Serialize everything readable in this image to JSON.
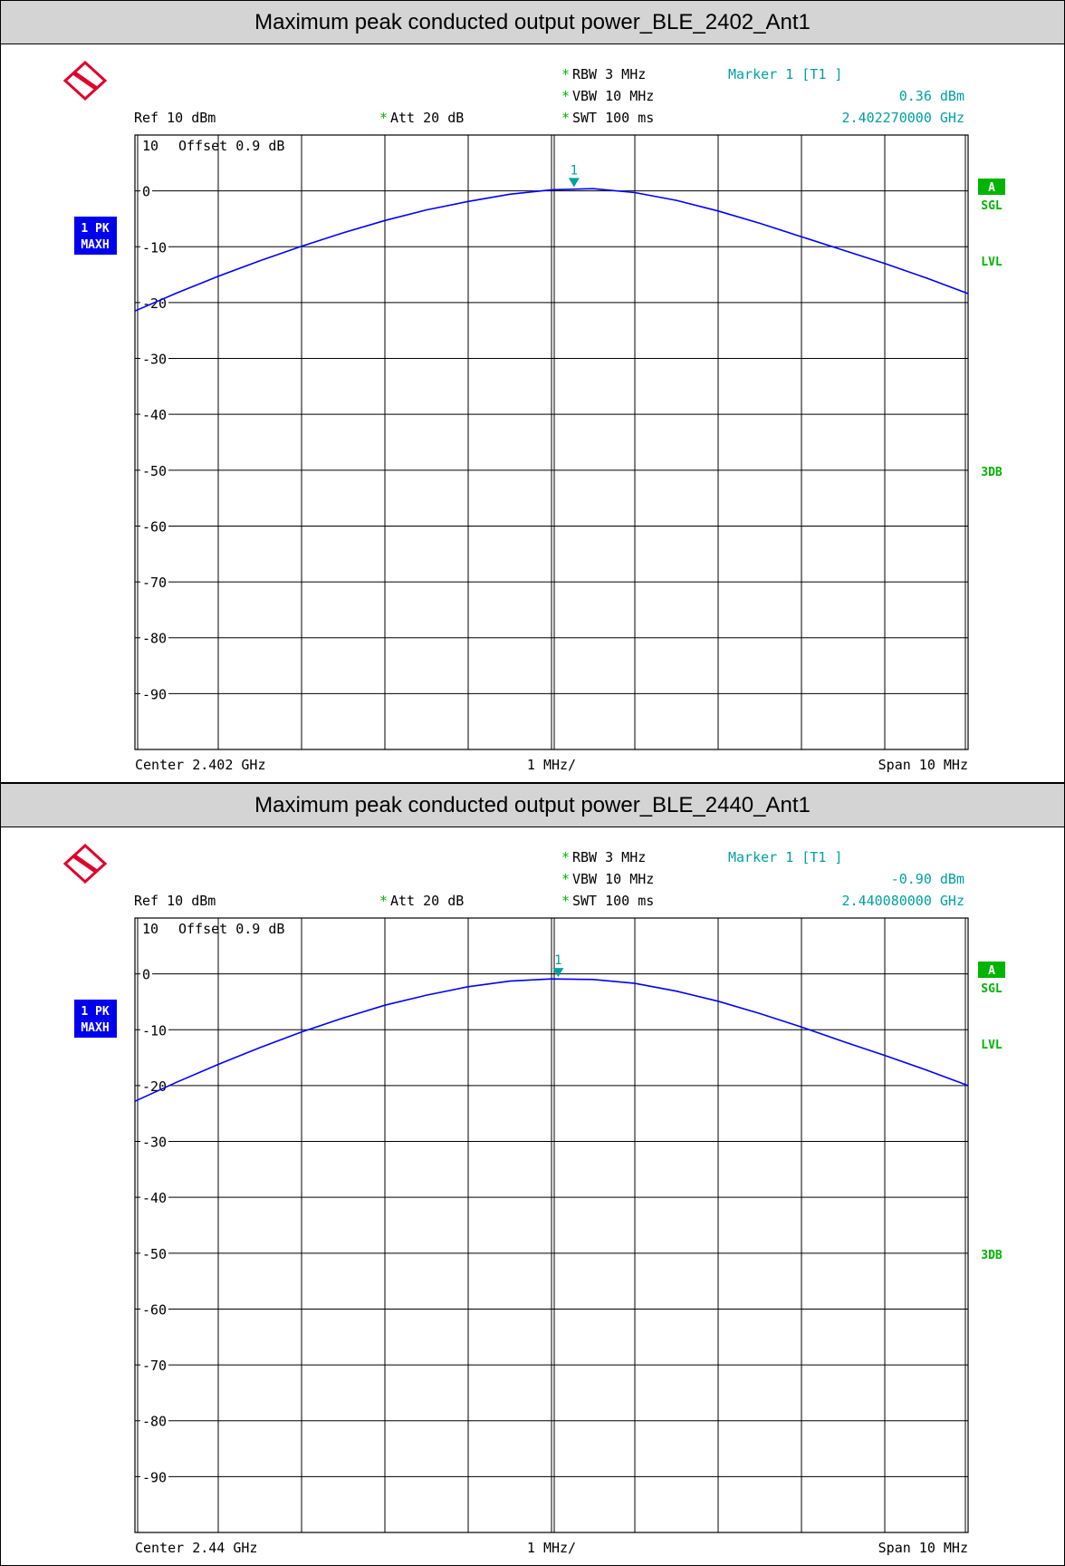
{
  "chart_data": [
    {
      "type": "line",
      "title": "Maximum peak conducted output power_BLE_2402_Ant1",
      "header": {
        "rbw": "RBW 3 MHz",
        "vbw": "VBW 10 MHz",
        "swt": "SWT 100 ms",
        "ref": "Ref  10 dBm",
        "att": "Att  20 dB",
        "marker_label": "Marker 1 [T1 ]",
        "marker_level": "0.36 dBm",
        "marker_freq": "2.402270000 GHz",
        "offset": "Offset  0.9 dB",
        "star": "*"
      },
      "trace_label": [
        "1 PK",
        "MAXH"
      ],
      "right_labels": {
        "a": "A",
        "sgl": "SGL",
        "lvl": "LVL",
        "db3": "3DB"
      },
      "marker_number": "1",
      "y_ticks": [
        "10",
        "0",
        "-10",
        "-20",
        "-30",
        "-40",
        "-50",
        "-60",
        "-70",
        "-80",
        "-90"
      ],
      "ylim": [
        -100,
        10
      ],
      "xlim": [
        2.397,
        2.407
      ],
      "footer": {
        "left": "Center 2.402 GHz",
        "mid": "1 MHz/",
        "right": "Span 10 MHz"
      },
      "marker": {
        "x": 2.40227,
        "y": 0.36
      },
      "series": [
        {
          "color": "#0000ff",
          "x": [
            2.397,
            2.3975,
            2.398,
            2.3985,
            2.399,
            2.3995,
            2.4,
            2.4005,
            2.401,
            2.4015,
            2.402,
            2.4025,
            2.403,
            2.4035,
            2.404,
            2.4045,
            2.405,
            2.4055,
            2.406,
            2.4065,
            2.407
          ],
          "values": [
            -21.5,
            -18.3,
            -15.3,
            -12.5,
            -9.9,
            -7.5,
            -5.3,
            -3.4,
            -1.9,
            -0.6,
            0.2,
            0.4,
            -0.3,
            -1.7,
            -3.6,
            -5.8,
            -8.2,
            -10.6,
            -13.0,
            -15.6,
            -18.4
          ]
        }
      ]
    },
    {
      "type": "line",
      "title": "Maximum peak conducted output power_BLE_2440_Ant1",
      "header": {
        "rbw": "RBW 3 MHz",
        "vbw": "VBW 10 MHz",
        "swt": "SWT 100 ms",
        "ref": "Ref  10 dBm",
        "att": "Att  20 dB",
        "marker_label": "Marker 1 [T1 ]",
        "marker_level": "-0.90 dBm",
        "marker_freq": "2.440080000 GHz",
        "offset": "Offset  0.9 dB",
        "star": "*"
      },
      "trace_label": [
        "1 PK",
        "MAXH"
      ],
      "right_labels": {
        "a": "A",
        "sgl": "SGL",
        "lvl": "LVL",
        "db3": "3DB"
      },
      "marker_number": "1",
      "y_ticks": [
        "10",
        "0",
        "-10",
        "-20",
        "-30",
        "-40",
        "-50",
        "-60",
        "-70",
        "-80",
        "-90"
      ],
      "ylim": [
        -100,
        10
      ],
      "xlim": [
        2.435,
        2.445
      ],
      "footer": {
        "left": "Center 2.44 GHz",
        "mid": "1 MHz/",
        "right": "Span 10 MHz"
      },
      "marker": {
        "x": 2.44008,
        "y": -0.9
      },
      "series": [
        {
          "color": "#0000ff",
          "x": [
            2.435,
            2.4355,
            2.436,
            2.4365,
            2.437,
            2.4375,
            2.438,
            2.4385,
            2.439,
            2.4395,
            2.44,
            2.4405,
            2.441,
            2.4415,
            2.442,
            2.4425,
            2.443,
            2.4435,
            2.444,
            2.4445,
            2.445
          ],
          "values": [
            -22.8,
            -19.4,
            -16.2,
            -13.2,
            -10.4,
            -7.9,
            -5.6,
            -3.8,
            -2.3,
            -1.3,
            -0.9,
            -1.0,
            -1.7,
            -3.1,
            -4.9,
            -7.1,
            -9.5,
            -12.1,
            -14.6,
            -17.2,
            -20.0
          ]
        }
      ]
    }
  ]
}
